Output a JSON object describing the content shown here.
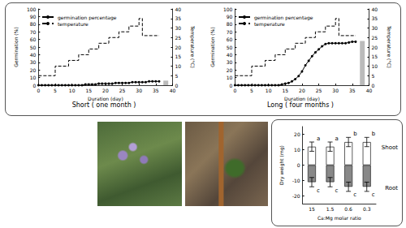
{
  "chart_data": [
    {
      "type": "line",
      "title": "Short ( one month )",
      "x_label": "Duration (day)",
      "y_label": "Germination (%)",
      "y2_label": "Temperature (°C)",
      "xlim": [
        0,
        40
      ],
      "xticks": [
        0,
        5,
        10,
        15,
        20,
        25,
        30,
        35,
        40
      ],
      "ylim": [
        0,
        100
      ],
      "yticks": [
        0,
        10,
        20,
        30,
        40,
        50,
        60,
        70,
        80,
        90,
        100
      ],
      "y2lim": [
        0,
        40
      ],
      "y2ticks": [
        0,
        5,
        10,
        15,
        20,
        25,
        30,
        35,
        40
      ],
      "legend": "upper left",
      "grid": false,
      "series": [
        {
          "name": "germination percentage",
          "type": "line",
          "color": "#000000",
          "marker": "circle",
          "line_style": "solid",
          "x": [
            0,
            1,
            2,
            3,
            4,
            5,
            6,
            7,
            8,
            9,
            10,
            11,
            12,
            13,
            14,
            15,
            16,
            17,
            18,
            19,
            20,
            21,
            22,
            23,
            24,
            25,
            26,
            27,
            28,
            29,
            30,
            31,
            32,
            33,
            34,
            35,
            36
          ],
          "values": [
            0,
            0,
            0,
            0,
            0,
            0,
            0,
            0,
            0,
            0,
            0,
            0,
            0,
            0,
            1,
            1,
            1,
            1,
            2,
            2,
            2,
            2,
            2,
            3,
            3,
            3,
            3,
            3,
            4,
            4,
            4,
            4,
            4,
            5,
            5,
            5,
            5
          ]
        },
        {
          "name": "temperature",
          "type": "line",
          "axis": "y2",
          "color": "#000000",
          "marker": "none",
          "line_style": "dashed",
          "x": [
            0,
            5,
            9,
            12,
            15,
            18,
            21,
            24,
            27,
            30,
            31,
            36
          ],
          "values": [
            5,
            10,
            13,
            16,
            19,
            22,
            25,
            28,
            31,
            35,
            26,
            26
          ]
        },
        {
          "type": "bar",
          "color": "#bbbbbb",
          "x": [
            38
          ],
          "values": [
            6
          ]
        }
      ]
    },
    {
      "type": "line",
      "title": "Long ( four months )",
      "x_label": "Duration (day)",
      "y_label": "Germination (%)",
      "y2_label": "Temperature (°C)",
      "xlim": [
        0,
        40
      ],
      "xticks": [
        0,
        5,
        10,
        15,
        20,
        25,
        30,
        35,
        40
      ],
      "ylim": [
        0,
        100
      ],
      "yticks": [
        0,
        10,
        20,
        30,
        40,
        50,
        60,
        70,
        80,
        90,
        100
      ],
      "y2lim": [
        0,
        40
      ],
      "y2ticks": [
        0,
        5,
        10,
        15,
        20,
        25,
        30,
        35,
        40
      ],
      "legend": "upper left",
      "grid": false,
      "series": [
        {
          "name": "germination percentage",
          "type": "line",
          "color": "#000000",
          "marker": "circle",
          "line_style": "solid",
          "x": [
            0,
            1,
            2,
            3,
            4,
            5,
            6,
            7,
            8,
            9,
            10,
            11,
            12,
            13,
            14,
            15,
            16,
            17,
            18,
            19,
            20,
            21,
            22,
            23,
            24,
            25,
            26,
            27,
            28,
            29,
            30,
            31,
            32,
            33,
            34,
            35,
            36
          ],
          "values": [
            0,
            0,
            0,
            0,
            0,
            0,
            0,
            0,
            0,
            0,
            0,
            0,
            0,
            0,
            1,
            2,
            3,
            5,
            8,
            12,
            18,
            26,
            32,
            38,
            43,
            47,
            51,
            54,
            55,
            55,
            55,
            55,
            55,
            55,
            56,
            57,
            57
          ]
        },
        {
          "name": "temperature",
          "type": "line",
          "axis": "y2",
          "color": "#000000",
          "marker": "none",
          "line_style": "dashed",
          "x": [
            0,
            5,
            9,
            12,
            15,
            18,
            21,
            24,
            27,
            30,
            31,
            36
          ],
          "values": [
            5,
            10,
            13,
            16,
            19,
            22,
            25,
            28,
            31,
            35,
            26,
            26
          ]
        },
        {
          "type": "bar",
          "color": "#bbbbbb",
          "x": [
            38
          ],
          "values": [
            58
          ]
        }
      ]
    },
    {
      "type": "bar",
      "x_label": "Ca:Mg molar ratio",
      "y_label": "Dry weight (mg)",
      "stacked": true,
      "grid": false,
      "categories": [
        "15",
        "1.5",
        "0.6",
        "0.3"
      ],
      "ylim": [
        -25,
        25
      ],
      "yticks": [
        -20,
        -10,
        0,
        10,
        20
      ],
      "series": [
        {
          "name": "Shoot",
          "color": "#ffffff",
          "values": [
            12,
            12,
            15,
            15
          ],
          "errors": [
            3,
            3,
            3,
            3
          ],
          "letters": [
            "a",
            "a",
            "b",
            "b"
          ]
        },
        {
          "name": "Root",
          "color": "#888888",
          "values": [
            -11,
            -11,
            -14,
            -14
          ],
          "errors": [
            3,
            3,
            3,
            3
          ],
          "letters": [
            "c",
            "c",
            "c",
            "c"
          ]
        }
      ]
    }
  ]
}
